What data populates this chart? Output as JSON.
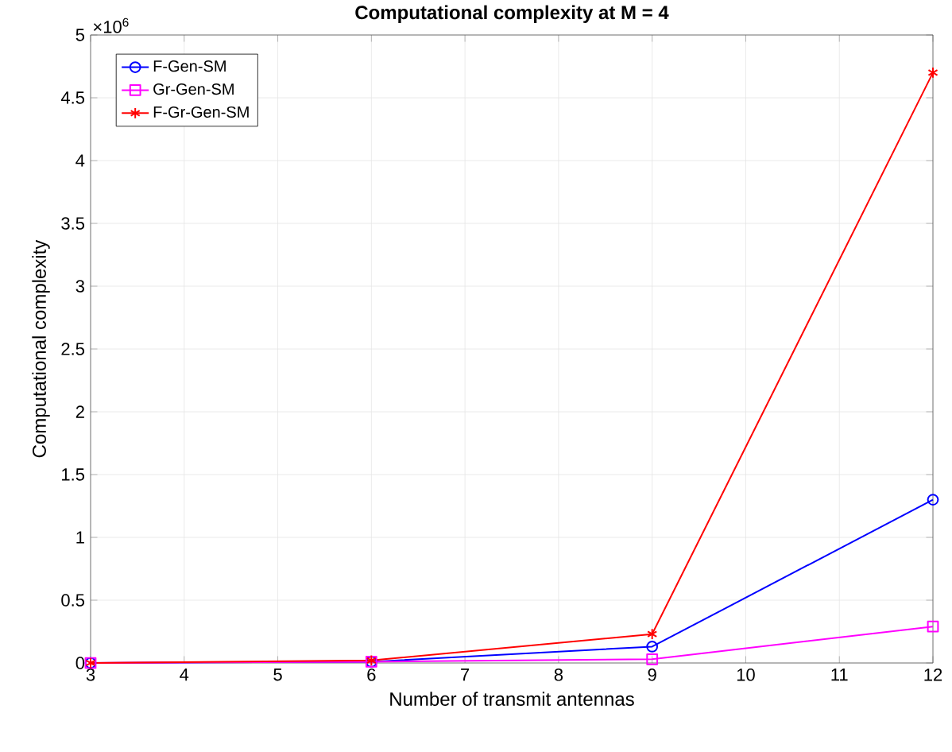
{
  "chart_data": {
    "type": "line",
    "title": "Computational complexity at M = 4",
    "xlabel": "Number of transmit antennas",
    "ylabel": "Computational complexity",
    "annotations": [
      "×10$^{6}$"
    ],
    "x": [
      3,
      6,
      9,
      12
    ],
    "series": [
      {
        "name": "F-Gen-SM",
        "color": "#0000ff",
        "marker": "circle",
        "values": [
          0,
          0.01,
          0.13,
          1.3
        ]
      },
      {
        "name": "Gr-Gen-SM",
        "color": "#ff00ff",
        "marker": "square",
        "values": [
          0,
          0.01,
          0.03,
          0.29
        ]
      },
      {
        "name": "F-Gr-Gen-SM",
        "color": "#ff0000",
        "marker": "cross",
        "values": [
          0,
          0.02,
          0.23,
          4.7
        ]
      }
    ],
    "xlim": [
      3,
      12
    ],
    "xticks": [
      3,
      4,
      5,
      6,
      7,
      8,
      9,
      10,
      11,
      12
    ],
    "ylim": [
      0,
      5
    ],
    "yticks": [
      0,
      0.5,
      1,
      1.5,
      2,
      2.5,
      3,
      3.5,
      4,
      4.5,
      5
    ],
    "grid": true,
    "legend": "top left",
    "line_style": "solid"
  }
}
